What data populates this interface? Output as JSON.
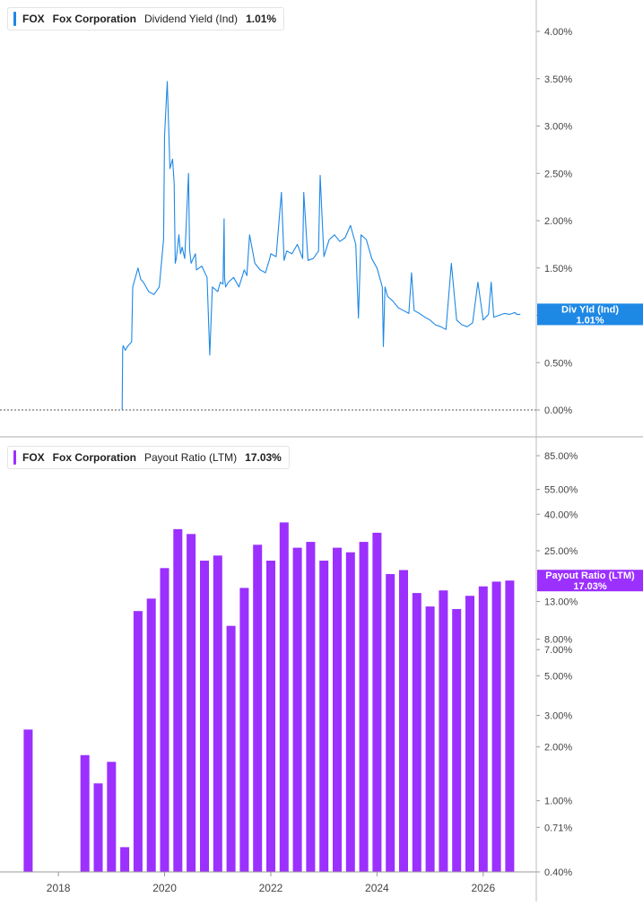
{
  "colors": {
    "yield": "#1e88e5",
    "payout": "#9b30ff",
    "axis_text": "#444444",
    "divider": "#c8c8c8"
  },
  "legends": [
    {
      "ticker": "FOX",
      "company": "Fox Corporation",
      "metric": "Dividend Yield (Ind)",
      "value": "1.01%"
    },
    {
      "ticker": "FOX",
      "company": "Fox Corporation",
      "metric": "Payout Ratio (LTM)",
      "value": "17.03%"
    }
  ],
  "chart_data": [
    {
      "type": "line",
      "series": [
        {
          "name": "Dividend Yield (Ind)",
          "x": [
            2019.2,
            2019.21,
            2019.22,
            2019.26,
            2019.3,
            2019.38,
            2019.4,
            2019.5,
            2019.55,
            2019.6,
            2019.7,
            2019.8,
            2019.9,
            2019.98,
            2020.0,
            2020.05,
            2020.1,
            2020.15,
            2020.18,
            2020.2,
            2020.22,
            2020.24,
            2020.27,
            2020.3,
            2020.33,
            2020.38,
            2020.45,
            2020.47,
            2020.5,
            2020.58,
            2020.6,
            2020.7,
            2020.8,
            2020.85,
            2020.9,
            2021.0,
            2021.05,
            2021.1,
            2021.12,
            2021.13,
            2021.15,
            2021.2,
            2021.3,
            2021.4,
            2021.5,
            2021.55,
            2021.6,
            2021.7,
            2021.8,
            2021.9,
            2021.98,
            2022.0,
            2022.1,
            2022.2,
            2022.25,
            2022.3,
            2022.4,
            2022.5,
            2022.6,
            2022.62,
            2022.7,
            2022.8,
            2022.9,
            2022.93,
            2023.0,
            2023.1,
            2023.2,
            2023.3,
            2023.4,
            2023.5,
            2023.6,
            2023.65,
            2023.7,
            2023.8,
            2023.9,
            2024.0,
            2024.1,
            2024.12,
            2024.15,
            2024.2,
            2024.3,
            2024.4,
            2024.5,
            2024.6,
            2024.65,
            2024.7,
            2024.8,
            2024.9,
            2025.0,
            2025.1,
            2025.2,
            2025.3,
            2025.4,
            2025.5,
            2025.6,
            2025.7,
            2025.8,
            2025.9,
            2026.0,
            2026.05,
            2026.1,
            2026.15,
            2026.2,
            2026.3,
            2026.4,
            2026.5,
            2026.55,
            2026.6,
            2026.63,
            2026.65,
            2026.7
          ],
          "y": [
            0.0,
            0.65,
            0.68,
            0.63,
            0.67,
            0.72,
            1.3,
            1.5,
            1.38,
            1.35,
            1.25,
            1.22,
            1.3,
            1.8,
            2.9,
            3.47,
            2.55,
            2.65,
            2.4,
            1.55,
            1.6,
            1.7,
            1.85,
            1.65,
            1.72,
            1.6,
            2.5,
            1.7,
            1.55,
            1.65,
            1.48,
            1.52,
            1.4,
            0.58,
            1.3,
            1.25,
            1.35,
            1.33,
            2.02,
            1.4,
            1.3,
            1.35,
            1.4,
            1.3,
            1.48,
            1.42,
            1.85,
            1.55,
            1.48,
            1.45,
            1.6,
            1.65,
            1.62,
            2.3,
            1.58,
            1.68,
            1.65,
            1.75,
            1.6,
            2.3,
            1.58,
            1.6,
            1.68,
            2.48,
            1.62,
            1.8,
            1.85,
            1.78,
            1.82,
            1.95,
            1.75,
            0.97,
            1.85,
            1.8,
            1.6,
            1.5,
            1.3,
            0.67,
            1.3,
            1.2,
            1.15,
            1.08,
            1.05,
            1.02,
            1.45,
            1.05,
            1.02,
            0.98,
            0.95,
            0.9,
            0.88,
            0.85,
            1.55,
            0.95,
            0.9,
            0.88,
            0.92,
            1.35,
            0.95,
            0.98,
            1.01,
            1.35,
            0.98,
            1.0,
            1.02,
            1.01,
            1.02,
            1.03,
            1.01,
            1.01,
            1.01
          ],
          "color": "#1e88e5"
        }
      ],
      "xlim": [
        2016.9,
        2027.0
      ],
      "ylim": [
        0.0,
        4.25
      ],
      "y_ticks": [
        "0.00%",
        "0.50%",
        "1.00%",
        "1.50%",
        "2.00%",
        "2.50%",
        "3.00%",
        "3.50%",
        "4.00%"
      ],
      "y_tick_values": [
        0,
        0.5,
        1.0,
        1.5,
        2.0,
        2.5,
        3.0,
        3.5,
        4.0
      ],
      "reference_line": 0,
      "last_value_label": {
        "name": "Div Yld (Ind)",
        "value": "1.01%"
      }
    },
    {
      "type": "bar",
      "scale": "log",
      "series": [
        {
          "name": "Payout Ratio (LTM)",
          "x": [
            2017.43,
            2018.5,
            2018.75,
            2019.0,
            2019.25,
            2019.5,
            2019.75,
            2020.0,
            2020.25,
            2020.5,
            2020.75,
            2021.0,
            2021.25,
            2021.5,
            2021.75,
            2022.0,
            2022.25,
            2022.5,
            2022.75,
            2023.0,
            2023.25,
            2023.5,
            2023.75,
            2024.0,
            2024.25,
            2024.5,
            2024.75,
            2025.0,
            2025.25,
            2025.5,
            2025.75,
            2026.0,
            2026.25,
            2026.5
          ],
          "values": [
            2.5,
            1.8,
            1.25,
            1.65,
            0.55,
            11.5,
            13.5,
            20.0,
            33.0,
            31.0,
            22.0,
            23.5,
            9.5,
            15.5,
            27.0,
            22.0,
            36.0,
            26.0,
            28.0,
            22.0,
            26.0,
            24.5,
            28.0,
            31.5,
            18.5,
            19.5,
            14.5,
            12.2,
            15.0,
            11.8,
            14.0,
            15.8,
            16.8,
            17.03
          ],
          "color": "#9b30ff"
        }
      ],
      "xlim": [
        2016.9,
        2027.0
      ],
      "ylim": [
        0.4,
        85.0
      ],
      "y_ticks": [
        "0.40%",
        "0.71%",
        "1.00%",
        "2.00%",
        "3.00%",
        "5.00%",
        "7.00%",
        "8.00%",
        "13.00%",
        "25.00%",
        "40.00%",
        "55.00%",
        "85.00%"
      ],
      "y_tick_values": [
        0.4,
        0.71,
        1.0,
        2.0,
        3.0,
        5.0,
        7.0,
        8.0,
        13.0,
        25.0,
        40.0,
        55.0,
        85.0
      ],
      "x_ticks": [
        "2018",
        "2020",
        "2022",
        "2024",
        "2026"
      ],
      "x_tick_values": [
        2018,
        2020,
        2022,
        2024,
        2026
      ],
      "last_value_label": {
        "name": "Payout Ratio (LTM)",
        "value": "17.03%"
      }
    }
  ]
}
